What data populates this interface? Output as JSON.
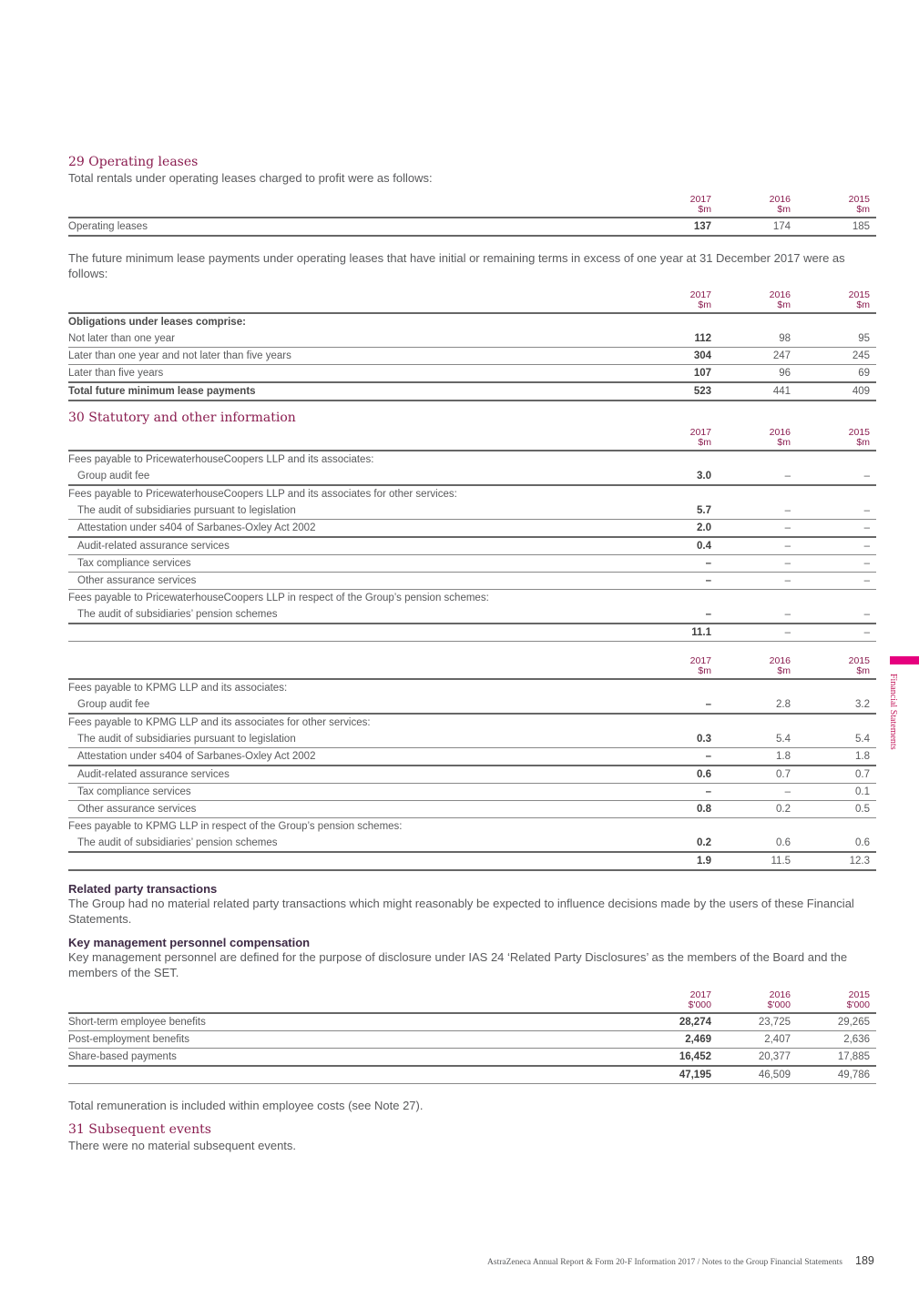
{
  "note29": {
    "title": "29 Operating leases",
    "intro": "Total rentals under operating leases charged to profit were as follows:",
    "para2": "The future minimum lease payments under operating leases that have initial or remaining terms in excess of one year at 31 December 2017 were as follows:"
  },
  "note30": {
    "title": "30 Statutory and other information"
  },
  "related": {
    "heading": "Related party transactions",
    "text": "The Group had no material related party transactions which might reasonably be expected to influence decisions made by the users of these Financial Statements."
  },
  "kmp": {
    "heading": "Key management personnel compensation",
    "text": "Key management personnel are defined for the purpose of disclosure under IAS 24 ‘Related Party Disclosures’ as the members of the Board and the members of the SET.",
    "after": "Total remuneration is included within employee costs (see Note 27)."
  },
  "note31": {
    "title": "31 Subsequent events",
    "text": "There were no material subsequent events."
  },
  "tables": [
    {
      "headers": [
        [
          "2017",
          "$m"
        ],
        [
          "2016",
          "$m"
        ],
        [
          "2015",
          "$m"
        ]
      ],
      "rows": [
        {
          "label": "Operating leases",
          "values": [
            "137",
            "174",
            "185"
          ],
          "line": "thick"
        }
      ]
    },
    {
      "headers": [
        [
          "2017",
          "$m"
        ],
        [
          "2016",
          "$m"
        ],
        [
          "2015",
          "$m"
        ]
      ],
      "rows": [
        {
          "label": "Obligations under leases comprise:",
          "bold": true,
          "values": [
            "",
            "",
            ""
          ],
          "line": "none"
        },
        {
          "label": "Not later than one year",
          "values": [
            "112",
            "98",
            "95"
          ],
          "line": "thin"
        },
        {
          "label": "Later than one year and not later than five years",
          "values": [
            "304",
            "247",
            "245"
          ],
          "line": "thin"
        },
        {
          "label": "Later than five years",
          "values": [
            "107",
            "96",
            "69"
          ],
          "line": "thick"
        },
        {
          "label": "Total future minimum lease payments",
          "bold": true,
          "values": [
            "523",
            "441",
            "409"
          ],
          "line": "thick"
        }
      ]
    },
    {
      "headers": [
        [
          "2017",
          "$m"
        ],
        [
          "2016",
          "$m"
        ],
        [
          "2015",
          "$m"
        ]
      ],
      "rows": [
        {
          "label": "Fees payable to PricewaterhouseCoopers LLP and its associates:",
          "values": [
            "",
            "",
            ""
          ],
          "line": "none"
        },
        {
          "label": "Group audit fee",
          "indent": true,
          "values": [
            "3.0",
            "–",
            "–"
          ],
          "line": "thick"
        },
        {
          "label": "Fees payable to PricewaterhouseCoopers LLP and its associates for other services:",
          "values": [
            "",
            "",
            ""
          ],
          "line": "none"
        },
        {
          "label": "The audit of subsidiaries pursuant to legislation",
          "indent": true,
          "values": [
            "5.7",
            "–",
            "–"
          ],
          "line": "thin"
        },
        {
          "label": "Attestation under s404 of Sarbanes-Oxley Act 2002",
          "indent": true,
          "values": [
            "2.0",
            "–",
            "–"
          ],
          "line": "thick"
        },
        {
          "label": "Audit-related assurance services",
          "indent": true,
          "values": [
            "0.4",
            "–",
            "–"
          ],
          "line": "thin"
        },
        {
          "label": "Tax compliance services",
          "indent": true,
          "values": [
            "–",
            "–",
            "–"
          ],
          "line": "thin"
        },
        {
          "label": "Other assurance services",
          "indent": true,
          "values": [
            "–",
            "–",
            "–"
          ],
          "line": "thin"
        },
        {
          "label": "Fees payable to PricewaterhouseCoopers LLP in respect of the Group’s pension schemes:",
          "values": [
            "",
            "",
            ""
          ],
          "line": "none"
        },
        {
          "label": "The audit of subsidiaries’ pension schemes",
          "indent": true,
          "values": [
            "–",
            "–",
            "–"
          ],
          "line": "thick"
        },
        {
          "label": "",
          "values": [
            "11.1",
            "–",
            "–"
          ],
          "line": "thin"
        }
      ]
    },
    {
      "headers": [
        [
          "2017",
          "$m"
        ],
        [
          "2016",
          "$m"
        ],
        [
          "2015",
          "$m"
        ]
      ],
      "rows": [
        {
          "label": "Fees payable to KPMG LLP and its associates:",
          "values": [
            "",
            "",
            ""
          ],
          "line": "none"
        },
        {
          "label": "Group audit fee",
          "indent": true,
          "values": [
            "–",
            "2.8",
            "3.2"
          ],
          "line": "thick"
        },
        {
          "label": "Fees payable to KPMG LLP and its associates for other services:",
          "values": [
            "",
            "",
            ""
          ],
          "line": "none"
        },
        {
          "label": "The audit of subsidiaries pursuant to legislation",
          "indent": true,
          "values": [
            "0.3",
            "5.4",
            "5.4"
          ],
          "line": "thin"
        },
        {
          "label": "Attestation under s404 of Sarbanes-Oxley Act 2002",
          "indent": true,
          "values": [
            "–",
            "1.8",
            "1.8"
          ],
          "line": "thick"
        },
        {
          "label": "Audit-related assurance services",
          "indent": true,
          "values": [
            "0.6",
            "0.7",
            "0.7"
          ],
          "line": "thin"
        },
        {
          "label": "Tax compliance services",
          "indent": true,
          "values": [
            "–",
            "–",
            "0.1"
          ],
          "line": "thin"
        },
        {
          "label": "Other assurance services",
          "indent": true,
          "values": [
            "0.8",
            "0.2",
            "0.5"
          ],
          "line": "thin"
        },
        {
          "label": "Fees payable to KPMG LLP in respect of the Group’s pension schemes:",
          "values": [
            "",
            "",
            ""
          ],
          "line": "none"
        },
        {
          "label": "The audit of subsidiaries’ pension schemes",
          "indent": true,
          "values": [
            "0.2",
            "0.6",
            "0.6"
          ],
          "line": "thick"
        },
        {
          "label": "",
          "values": [
            "1.9",
            "11.5",
            "12.3"
          ],
          "line": "thick"
        }
      ]
    },
    {
      "headers": [
        [
          "2017",
          "$'000"
        ],
        [
          "2016",
          "$'000"
        ],
        [
          "2015",
          "$'000"
        ]
      ],
      "rows": [
        {
          "label": "Short-term employee benefits",
          "values": [
            "28,274",
            "23,725",
            "29,265"
          ],
          "line": "thin"
        },
        {
          "label": "Post-employment benefits",
          "values": [
            "2,469",
            "2,407",
            "2,636"
          ],
          "line": "thin"
        },
        {
          "label": "Share-based payments",
          "values": [
            "16,452",
            "20,377",
            "17,885"
          ],
          "line": "thick"
        },
        {
          "label": "",
          "values": [
            "47,195",
            "46,509",
            "49,786"
          ],
          "line": "thin"
        }
      ]
    }
  ],
  "side_tab": "Financial Statements",
  "footer": {
    "text": "AstraZeneca Annual Report & Form 20-F Information 2017 / Notes to the Group Financial Statements",
    "page": "189"
  },
  "colors": {
    "accent": "#8a1c4f",
    "tab": "#e6007e"
  }
}
